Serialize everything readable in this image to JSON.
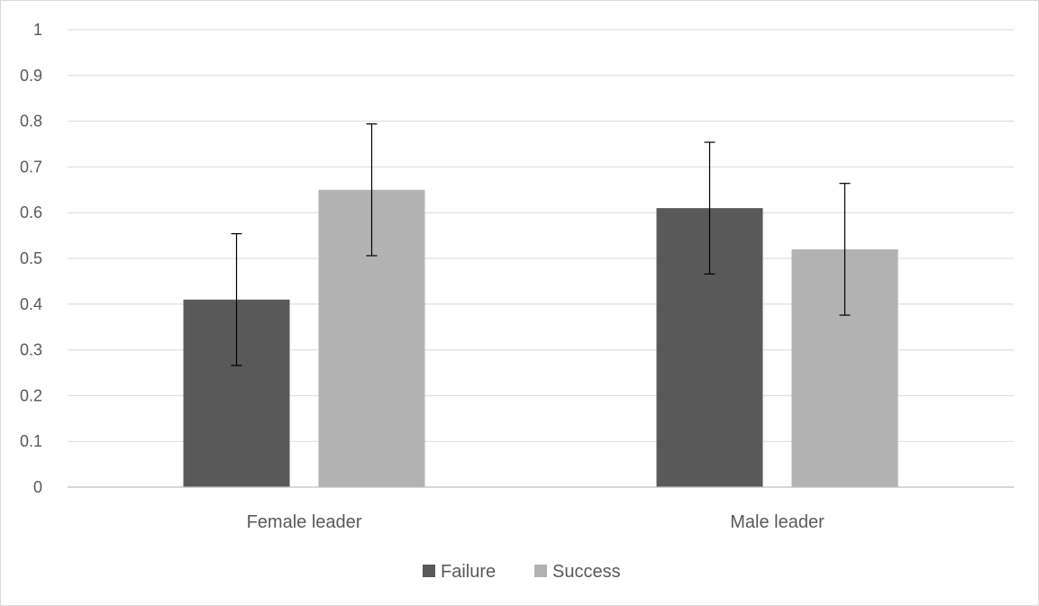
{
  "chart_data": {
    "type": "bar",
    "title": "",
    "xlabel": "",
    "ylabel": "",
    "categories": [
      "Female leader",
      "Male leader"
    ],
    "series": [
      {
        "name": "Failure",
        "color": "#595959",
        "values": [
          0.41,
          0.61
        ],
        "error": [
          0.144,
          0.144
        ]
      },
      {
        "name": "Success",
        "color": "#b2b2b2",
        "values": [
          0.65,
          0.52
        ],
        "error": [
          0.144,
          0.144
        ]
      }
    ],
    "ylim": [
      0,
      1
    ],
    "yticks": [
      "0",
      "0.1",
      "0.2",
      "0.3",
      "0.4",
      "0.5",
      "0.6",
      "0.7",
      "0.8",
      "0.9",
      "1"
    ],
    "grid": true,
    "legend_position": "bottom",
    "colors": {
      "gridline": "#d9d9d9",
      "axis": "#bfbfbf",
      "text": "#595959",
      "errorbar": "#000000"
    }
  }
}
